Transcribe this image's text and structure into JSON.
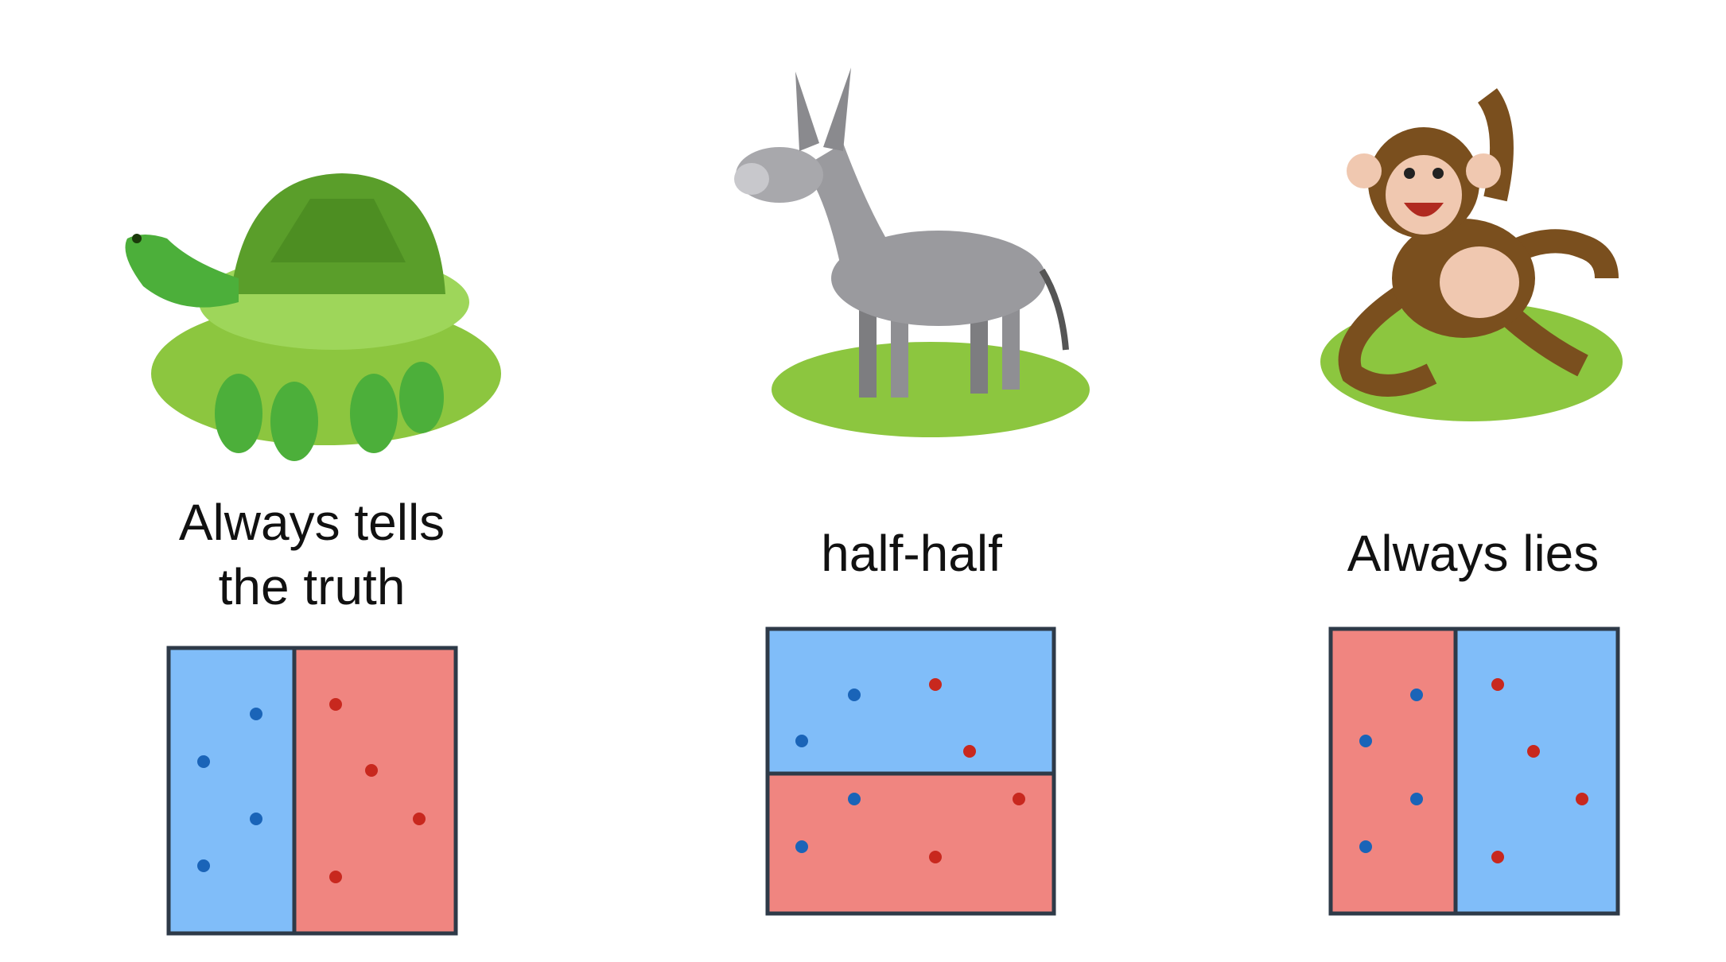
{
  "columns": [
    {
      "label": "Always tells the truth"
    },
    {
      "label": "half-half"
    },
    {
      "label": "Always lies"
    }
  ]
}
